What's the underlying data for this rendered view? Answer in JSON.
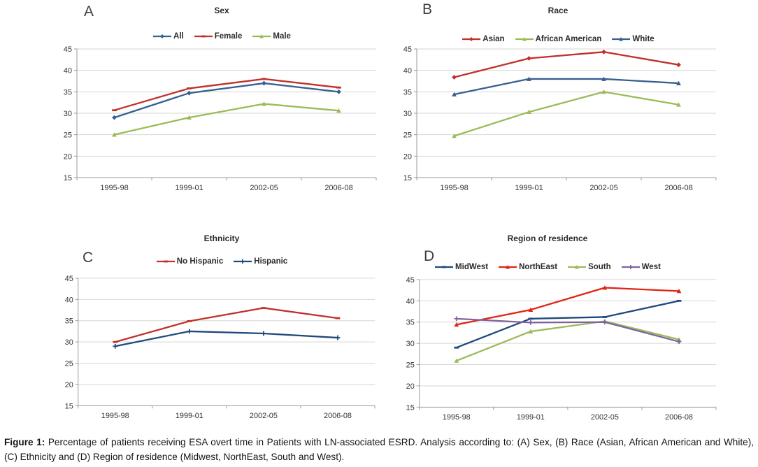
{
  "figure": {
    "caption_label": "Figure 1:",
    "caption_text": " Percentage of patients receiving ESA overt time in Patients with LN-associated ESRD. Analysis according to: (A) Sex, (B) Race (Asian, African American and White), (C) Ethnicity and (D) Region of residence (Midwest, NorthEast, South and West)."
  },
  "palette": {
    "gridline": "#d6d6d6",
    "axis": "#9a9a9a",
    "tick_label": "#333333",
    "background": "#ffffff"
  },
  "chart_data": [
    {
      "type": "line",
      "letter": "A",
      "title": "Sex",
      "categories": [
        "1995-98",
        "1999-01",
        "2002-05",
        "2006-08"
      ],
      "ylim": [
        15,
        45
      ],
      "ystep": 5,
      "grid": true,
      "legend_position": "top",
      "series": [
        {
          "name": "All",
          "color": "#376092",
          "marker": "diamond",
          "values": [
            29,
            34.7,
            37,
            35
          ]
        },
        {
          "name": "Female",
          "color": "#c0312b",
          "marker": "dash",
          "values": [
            30.7,
            35.8,
            38,
            36
          ]
        },
        {
          "name": "Male",
          "color": "#9bbb59",
          "marker": "triangle",
          "values": [
            25,
            29,
            32.2,
            30.6
          ]
        }
      ]
    },
    {
      "type": "line",
      "letter": "B",
      "title": "Race",
      "categories": [
        "1995-98",
        "1999-01",
        "2002-05",
        "2006-08"
      ],
      "ylim": [
        15,
        45
      ],
      "ystep": 5,
      "grid": true,
      "legend_position": "top",
      "series": [
        {
          "name": "Asian",
          "color": "#c0312b",
          "marker": "diamond",
          "values": [
            38.4,
            42.8,
            44.3,
            41.3
          ]
        },
        {
          "name": "African American",
          "color": "#9bbb59",
          "marker": "triangle",
          "values": [
            24.7,
            30.3,
            35,
            32
          ]
        },
        {
          "name": "White",
          "color": "#376092",
          "marker": "triangle",
          "values": [
            34.4,
            38,
            38,
            37
          ]
        }
      ]
    },
    {
      "type": "line",
      "letter": "C",
      "title": "Ethnicity",
      "categories": [
        "1995-98",
        "1999-01",
        "2002-05",
        "2006-08"
      ],
      "ylim": [
        15,
        45
      ],
      "ystep": 5,
      "grid": true,
      "legend_position": "top",
      "series": [
        {
          "name": "No Hispanic",
          "color": "#c0312b",
          "marker": "dash",
          "values": [
            30,
            34.9,
            38,
            35.6
          ]
        },
        {
          "name": "Hispanic",
          "color": "#1f497d",
          "marker": "plus",
          "values": [
            29,
            32.5,
            32,
            31
          ]
        }
      ]
    },
    {
      "type": "line",
      "letter": "D",
      "title": "Region of residence",
      "categories": [
        "1995-98",
        "1999-01",
        "2002-05",
        "2006-08"
      ],
      "ylim": [
        15,
        45
      ],
      "ystep": 5,
      "grid": true,
      "legend_position": "top",
      "series": [
        {
          "name": "MidWest",
          "color": "#1f497d",
          "marker": "dash",
          "values": [
            29,
            35.8,
            36.2,
            40
          ]
        },
        {
          "name": "NorthEast",
          "color": "#e32313",
          "marker": "triangle",
          "values": [
            34.4,
            37.9,
            43.1,
            42.3
          ]
        },
        {
          "name": "South",
          "color": "#9bbb59",
          "marker": "triangle",
          "values": [
            25.9,
            32.8,
            35.2,
            30.9
          ]
        },
        {
          "name": "West",
          "color": "#8064a2",
          "marker": "plus",
          "values": [
            35.8,
            34.9,
            35,
            30.4
          ]
        }
      ]
    }
  ]
}
